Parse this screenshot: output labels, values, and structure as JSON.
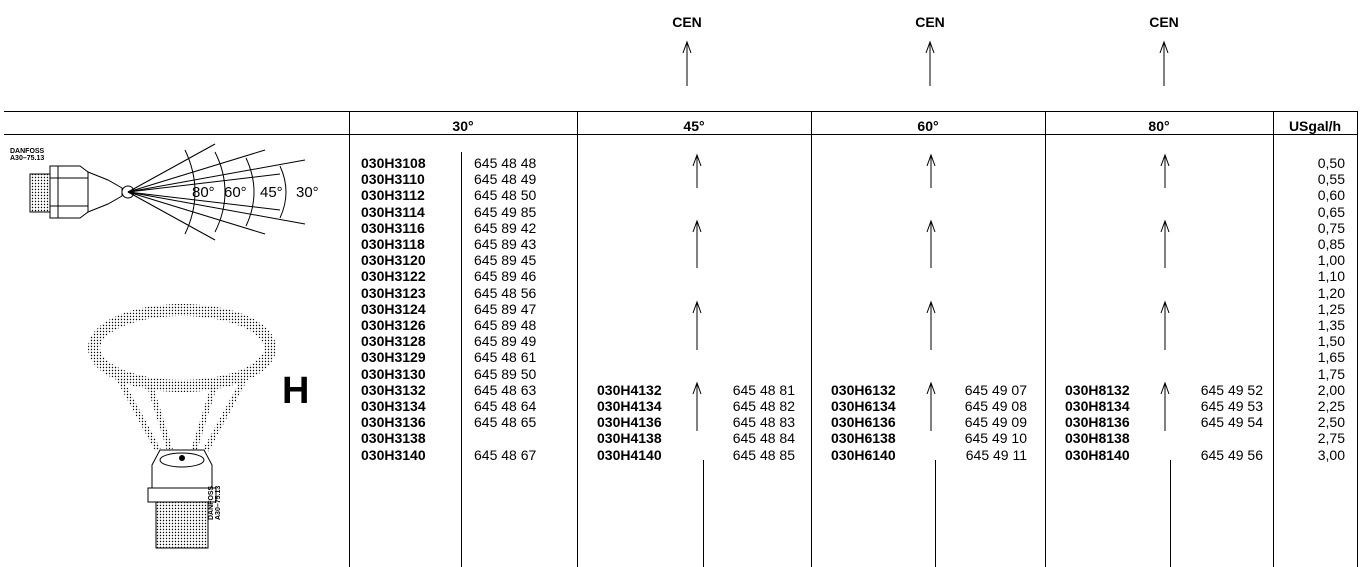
{
  "cen_labels": [
    "CEN",
    "CEN",
    "CEN"
  ],
  "headers": {
    "a30": "30°",
    "a45": "45°",
    "a60": "60°",
    "a80": "80°",
    "flow": "USgal/h"
  },
  "illustration": {
    "brand": "DANFOSS",
    "model": "A30–75.13",
    "angles": [
      "80°",
      "60°",
      "45°",
      "30°"
    ],
    "pattern_letter": "H"
  },
  "rows": [
    {
      "c30": "030H3108",
      "p30": "645 48 48",
      "flow": "0,50"
    },
    {
      "c30": "030H3110",
      "p30": "645 48 49",
      "flow": "0,55"
    },
    {
      "c30": "030H3112",
      "p30": "645 48 50",
      "flow": "0,60"
    },
    {
      "c30": "030H3114",
      "p30": "645 49 85",
      "flow": "0,65"
    },
    {
      "c30": "030H3116",
      "p30": "645 89 42",
      "flow": "0,75"
    },
    {
      "c30": "030H3118",
      "p30": "645 89 43",
      "flow": "0,85"
    },
    {
      "c30": "030H3120",
      "p30": "645 89 45",
      "flow": "1,00"
    },
    {
      "c30": "030H3122",
      "p30": "645 89 46",
      "flow": "1,10"
    },
    {
      "c30": "030H3123",
      "p30": "645 48 56",
      "flow": "1,20"
    },
    {
      "c30": "030H3124",
      "p30": "645 89 47",
      "flow": "1,25"
    },
    {
      "c30": "030H3126",
      "p30": "645 89 48",
      "flow": "1,35"
    },
    {
      "c30": "030H3128",
      "p30": "645 89 49",
      "flow": "1,50"
    },
    {
      "c30": "030H3129",
      "p30": "645 48 61",
      "flow": "1,65"
    },
    {
      "c30": "030H3130",
      "p30": "645 89 50",
      "flow": "1,75"
    },
    {
      "c30": "030H3132",
      "p30": "645 48 63",
      "c45": "030H4132",
      "p45": "645 48 81",
      "c60": "030H6132",
      "p60": "645 49 07",
      "c80": "030H8132",
      "p80": "645 49 52",
      "flow": "2,00"
    },
    {
      "c30": "030H3134",
      "p30": "645 48 64",
      "c45": "030H4134",
      "p45": "645 48 82",
      "c60": "030H6134",
      "p60": "645 49 08",
      "c80": "030H8134",
      "p80": "645 49 53",
      "flow": "2,25"
    },
    {
      "c30": "030H3136",
      "p30": "645 48 65",
      "c45": "030H4136",
      "p45": "645 48 83",
      "c60": "030H6136",
      "p60": "645 49 09",
      "c80": "030H8136",
      "p80": "645 49 54",
      "flow": "2,50"
    },
    {
      "c30": "030H3138",
      "p30": "",
      "c45": "030H4138",
      "p45": "645 48 84",
      "c60": "030H6138",
      "p60": "645 49 10",
      "c80": "030H8138",
      "p80": "",
      "flow": "2,75"
    },
    {
      "c30": "030H3140",
      "p30": "645 48 67",
      "c45": "030H4140",
      "p45": "645 48 85",
      "c60": "030H6140",
      "p60": "645 49 11",
      "c80": "030H8140",
      "p80": "645 49 56",
      "flow": "3,00"
    }
  ]
}
